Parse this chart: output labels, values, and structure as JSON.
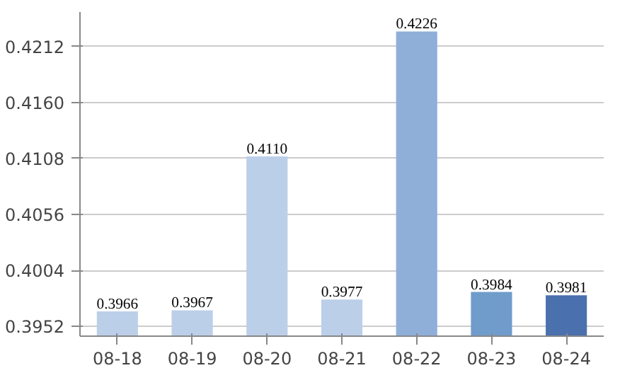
{
  "chart_data": {
    "type": "bar",
    "categories": [
      "08-18",
      "08-19",
      "08-20",
      "08-21",
      "08-22",
      "08-23",
      "08-24"
    ],
    "values": [
      0.3966,
      0.3967,
      0.411,
      0.3977,
      0.4226,
      0.3984,
      0.3981
    ],
    "value_labels": [
      "0.3966",
      "0.3967",
      "0.4110",
      "0.3977",
      "0.4226",
      "0.3984",
      "0.3981"
    ],
    "colors": [
      "#bccfe9",
      "#bccfe9",
      "#bccfe9",
      "#bccfe9",
      "#8fafd9",
      "#709ccb",
      "#4a70ad"
    ],
    "ylim": [
      0.3943,
      0.4244
    ],
    "yticks": [
      {
        "value": 0.3952,
        "label": "0.3952"
      },
      {
        "value": 0.4004,
        "label": "0.4004"
      },
      {
        "value": 0.4056,
        "label": "0.4056"
      },
      {
        "value": 0.4108,
        "label": "0.4108"
      },
      {
        "value": 0.416,
        "label": "0.4160"
      },
      {
        "value": 0.4212,
        "label": "0.4212"
      }
    ],
    "grid": "y"
  }
}
